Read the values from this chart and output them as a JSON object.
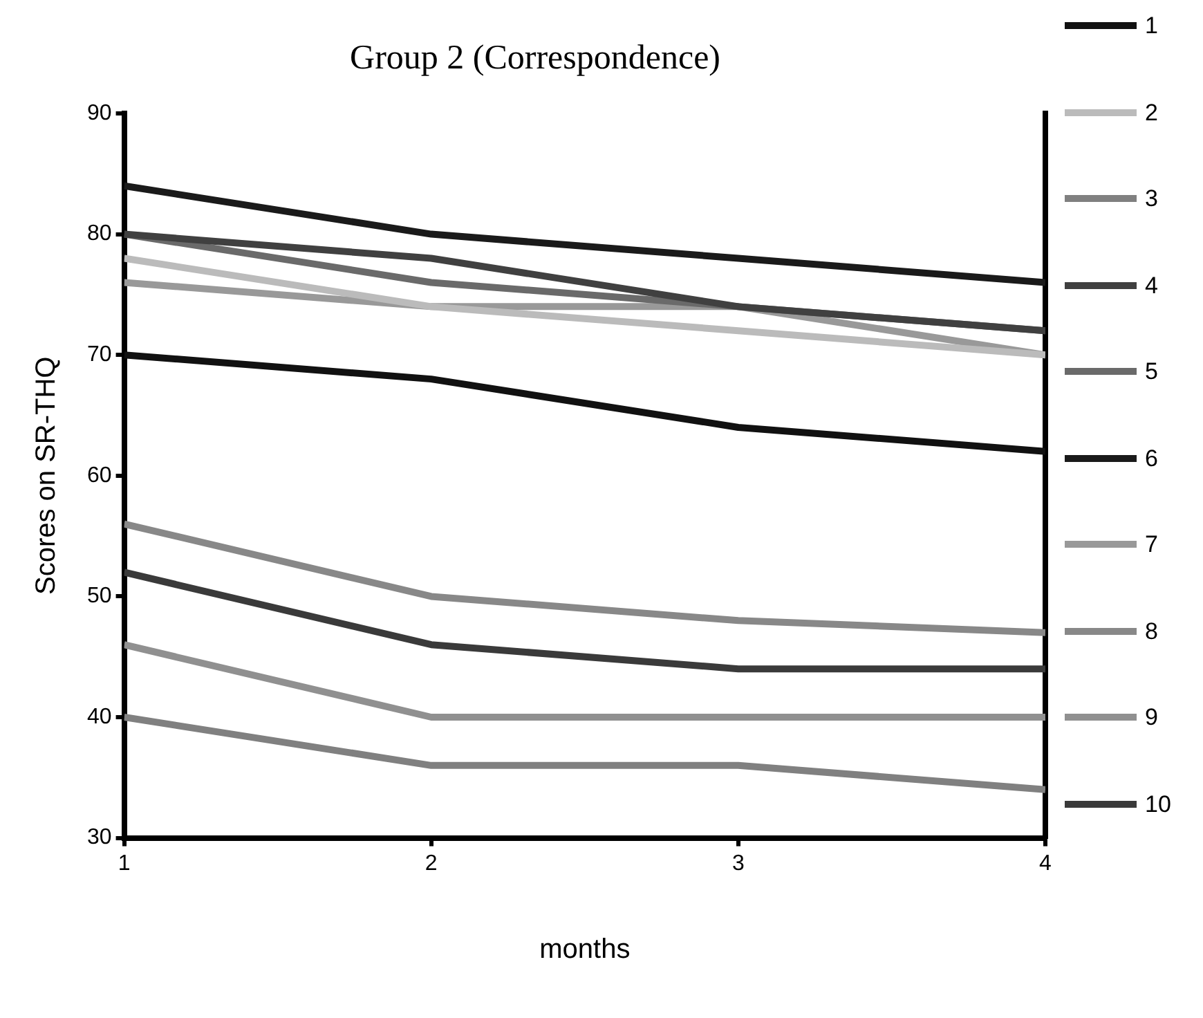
{
  "chart_data": {
    "type": "line",
    "title": "Group 2 (Correspondence)",
    "xlabel": "months",
    "ylabel": "Scores on SR-THQ",
    "x": [
      1,
      2,
      3,
      4
    ],
    "xlim": [
      1,
      4
    ],
    "xticks": [
      1,
      2,
      3,
      4
    ],
    "ylim": [
      30,
      90
    ],
    "yticks": [
      30,
      40,
      50,
      60,
      70,
      80,
      90
    ],
    "grid": false,
    "legend": "right",
    "marker": "none",
    "line_style": "solid",
    "series": [
      {
        "name": "1",
        "color": "#111111",
        "values": [
          70,
          68,
          64,
          62
        ]
      },
      {
        "name": "2",
        "color": "#bbbbbb",
        "values": [
          78,
          74,
          72,
          70
        ]
      },
      {
        "name": "3",
        "color": "#808080",
        "values": [
          40,
          36,
          36,
          34
        ]
      },
      {
        "name": "4",
        "color": "#404040",
        "values": [
          80,
          78,
          74,
          72
        ]
      },
      {
        "name": "5",
        "color": "#6a6a6a",
        "values": [
          80,
          76,
          74,
          72
        ]
      },
      {
        "name": "6",
        "color": "#1a1a1a",
        "values": [
          84,
          80,
          78,
          76
        ]
      },
      {
        "name": "7",
        "color": "#999999",
        "values": [
          76,
          74,
          74,
          70
        ]
      },
      {
        "name": "8",
        "color": "#888888",
        "values": [
          56,
          50,
          48,
          47
        ]
      },
      {
        "name": "9",
        "color": "#909090",
        "values": [
          46,
          40,
          40,
          40
        ]
      },
      {
        "name": "10",
        "color": "#3a3a3a",
        "values": [
          52,
          46,
          44,
          44
        ]
      }
    ]
  }
}
